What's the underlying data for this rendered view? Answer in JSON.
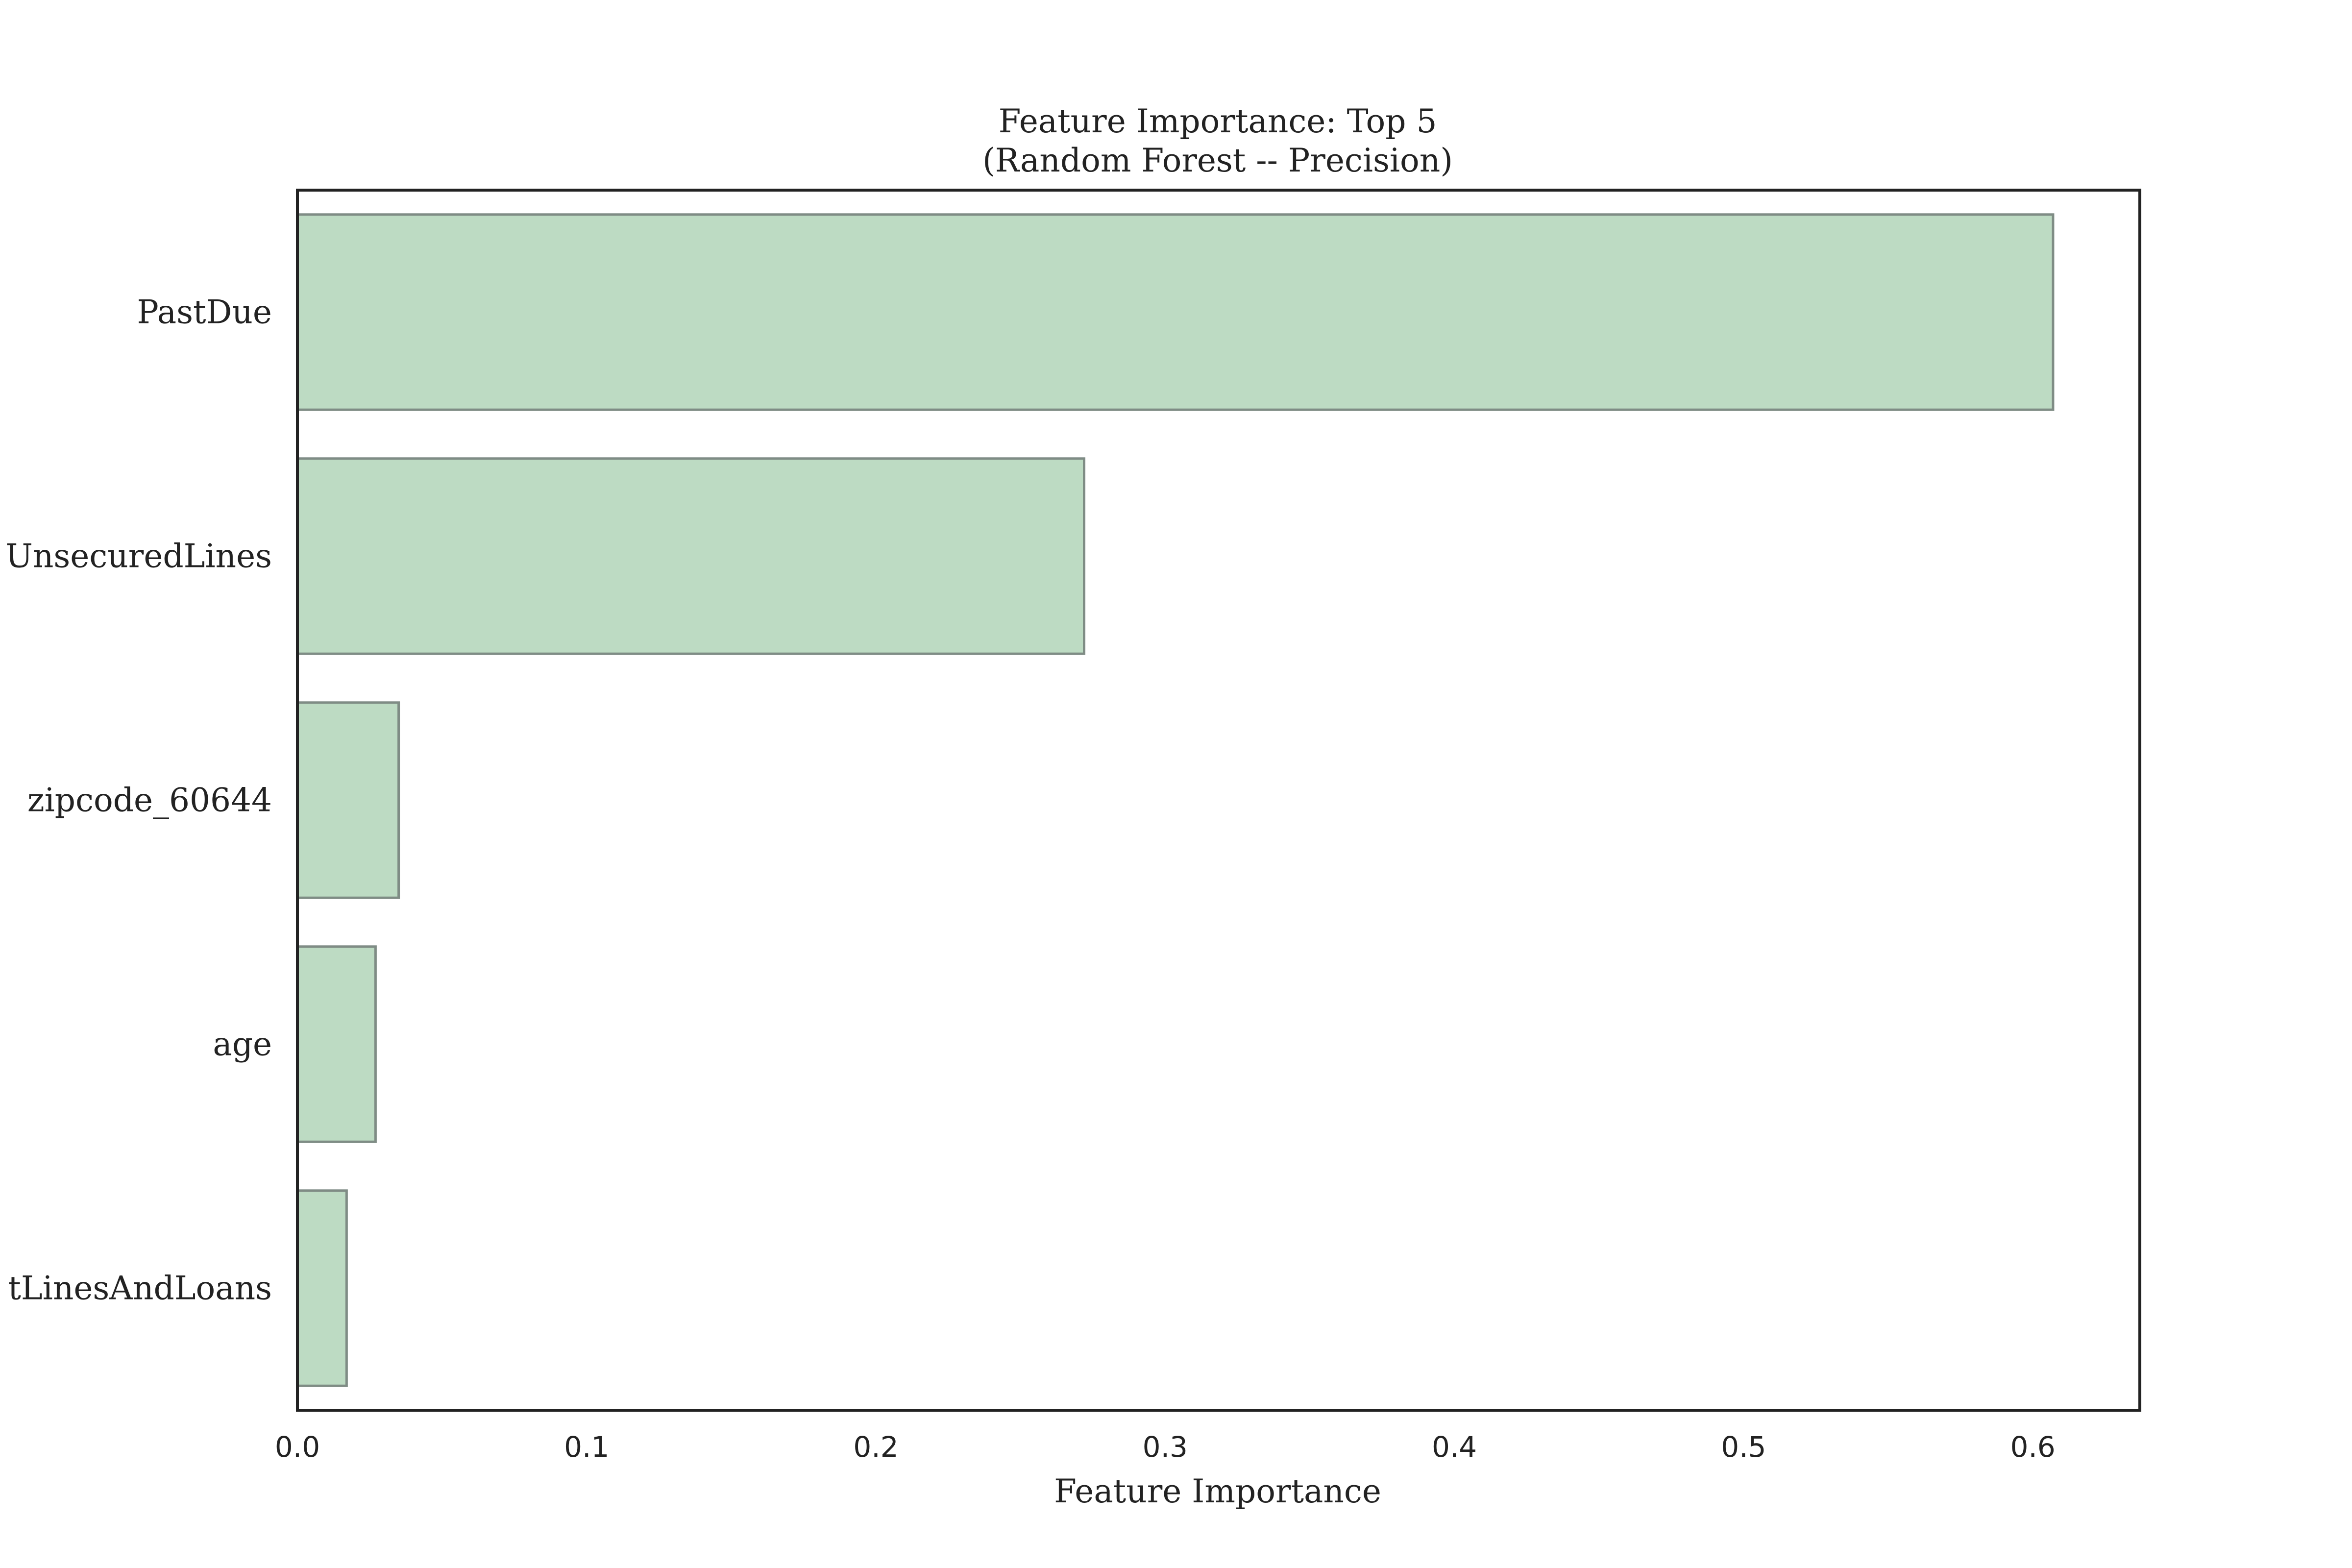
{
  "chart_data": {
    "type": "bar",
    "orientation": "horizontal",
    "title": "Feature Importance: Top 5",
    "subtitle": "(Random Forest -- Precision)",
    "xlabel": "Feature Importance",
    "ylabel": "",
    "categories": [
      "PastDue",
      "UnsecuredLines",
      "zipcode_60644",
      "age",
      "tLinesAndLoans"
    ],
    "values": [
      0.607,
      0.272,
      0.035,
      0.027,
      0.017
    ],
    "xlim": [
      0.0,
      0.637
    ],
    "xticks": [
      0.0,
      0.1,
      0.2,
      0.3,
      0.4,
      0.5,
      0.6
    ],
    "xtick_labels": [
      "0.0",
      "0.1",
      "0.2",
      "0.3",
      "0.4",
      "0.5",
      "0.6"
    ],
    "grid": false,
    "legend": "none",
    "colors": {
      "bar_fill": "#bddbc3",
      "bar_edge": "#7f8c85",
      "frame": "#222222"
    }
  }
}
